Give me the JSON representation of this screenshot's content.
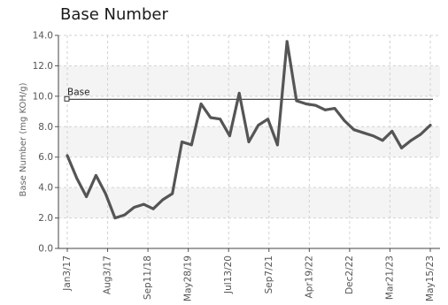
{
  "chart_data": {
    "type": "line",
    "title": "Base Number",
    "ylabel": "Base Number (mg KOH/g)",
    "ylim": [
      0,
      14
    ],
    "yticks": [
      "0.0",
      "2.0",
      "4.0",
      "6.0",
      "8.0",
      "10.0",
      "12.0",
      "14.0"
    ],
    "grid": true,
    "x_tick_labels": [
      "Jan3/17",
      "Aug3/17",
      "Sep11/18",
      "May28/19",
      "Jul13/20",
      "Sep7/21",
      "Apr19/22",
      "Dec2/22",
      "Mar21/23",
      "May15/23"
    ],
    "reference_line": {
      "label": "Base",
      "value": 9.8
    },
    "series_color": "#555555",
    "series": [
      {
        "values": [
          6.1,
          4.6,
          3.4,
          4.8,
          3.6,
          2.0,
          2.2,
          2.7,
          2.9,
          2.6,
          3.2,
          3.6,
          7.0,
          6.8,
          9.5,
          8.6,
          8.5,
          7.4,
          10.2,
          7.0,
          8.1,
          8.5,
          6.8,
          13.6,
          9.7,
          9.5,
          9.4,
          9.1,
          9.2,
          8.4,
          7.8,
          7.6,
          7.4,
          7.1,
          7.7,
          6.6,
          7.1,
          7.5,
          8.1
        ]
      }
    ]
  }
}
